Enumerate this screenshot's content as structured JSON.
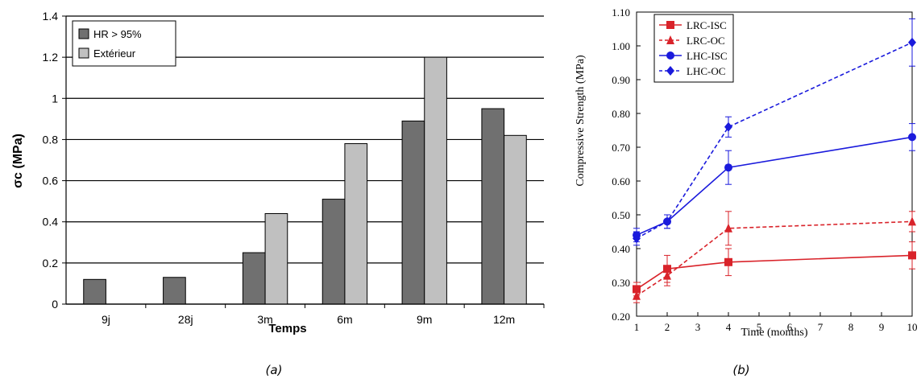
{
  "chart_data": [
    {
      "type": "bar",
      "caption": "(a)",
      "xlabel": "Temps",
      "ylabel": "σc (MPa)",
      "categories": [
        "9j",
        "28j",
        "3m",
        "6m",
        "9m",
        "12m"
      ],
      "ylim": [
        0,
        1.4
      ],
      "yticks": [
        "0",
        "0.2",
        "0.4",
        "0.6",
        "0.8",
        "1",
        "1.2",
        "1.4"
      ],
      "grid": true,
      "legend_position": "top-left",
      "series": [
        {
          "name": "HR > 95%",
          "color": "#707070",
          "values": [
            0.12,
            0.13,
            0.25,
            0.51,
            0.89,
            0.95
          ]
        },
        {
          "name": "Extérieur",
          "color": "#c0c0c0",
          "values": [
            null,
            null,
            0.44,
            0.78,
            1.2,
            0.82
          ]
        }
      ]
    },
    {
      "type": "line",
      "caption": "(b)",
      "xlabel": "Time (months)",
      "ylabel": "Compressive Strength (MPa)",
      "xlim": [
        1,
        10
      ],
      "ylim": [
        0.2,
        1.1
      ],
      "xticks": [
        "1",
        "2",
        "3",
        "4",
        "5",
        "6",
        "7",
        "8",
        "9",
        "10"
      ],
      "yticks": [
        "0.20",
        "0.30",
        "0.40",
        "0.50",
        "0.60",
        "0.70",
        "0.80",
        "0.90",
        "1.00",
        "1.10"
      ],
      "grid": false,
      "legend_position": "top-left",
      "series": [
        {
          "name": "LRC-ISC",
          "color": "#d9232a",
          "dashed": false,
          "marker": "square",
          "x": [
            1,
            2,
            4,
            10
          ],
          "y": [
            0.28,
            0.34,
            0.36,
            0.38
          ],
          "err": [
            0.02,
            0.04,
            0.04,
            0.04
          ]
        },
        {
          "name": "LRC-OC",
          "color": "#d9232a",
          "dashed": true,
          "marker": "triangle",
          "x": [
            1,
            2,
            4,
            10
          ],
          "y": [
            0.26,
            0.32,
            0.46,
            0.48
          ],
          "err": [
            0.02,
            0.03,
            0.05,
            0.03
          ]
        },
        {
          "name": "LHC-ISC",
          "color": "#1a1adc",
          "dashed": false,
          "marker": "circle",
          "x": [
            1,
            2,
            4,
            10
          ],
          "y": [
            0.44,
            0.48,
            0.64,
            0.73
          ],
          "err": [
            0.02,
            0.02,
            0.05,
            0.04
          ]
        },
        {
          "name": "LHC-OC",
          "color": "#1a1adc",
          "dashed": true,
          "marker": "diamond",
          "x": [
            1,
            2,
            4,
            10
          ],
          "y": [
            0.43,
            0.48,
            0.76,
            1.01
          ],
          "err": [
            0.02,
            0.02,
            0.03,
            0.07
          ]
        }
      ]
    }
  ]
}
